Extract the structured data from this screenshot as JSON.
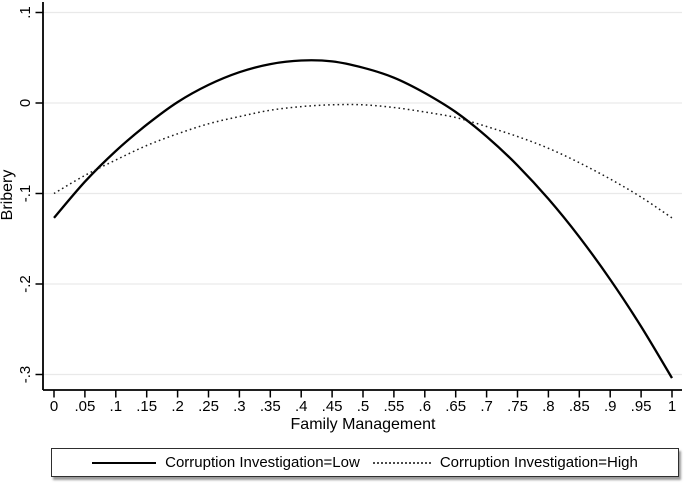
{
  "chart_data": {
    "type": "line",
    "title": "",
    "xlabel": "Family Management",
    "ylabel": "Bribery",
    "xlim": [
      0,
      1
    ],
    "ylim": [
      -0.32,
      0.1
    ],
    "grid": "horizontal-only",
    "grid_color": "#e9e9e9",
    "legend_position": "bottom-boxed",
    "x_ticks": [
      "0",
      ".05",
      ".1",
      ".15",
      ".2",
      ".25",
      ".3",
      ".35",
      ".4",
      ".45",
      ".5",
      ".55",
      ".6",
      ".65",
      ".7",
      ".75",
      ".8",
      ".85",
      ".9",
      ".95",
      "1"
    ],
    "y_ticks": [
      ".1",
      "0",
      "-.1",
      "-.2",
      "-.3"
    ],
    "x": [
      0,
      0.05,
      0.1,
      0.15,
      0.2,
      0.25,
      0.3,
      0.35,
      0.4,
      0.45,
      0.5,
      0.55,
      0.6,
      0.65,
      0.7,
      0.75,
      0.8,
      0.85,
      0.9,
      0.95,
      1
    ],
    "series": [
      {
        "name": "Corruption Investigation=Low",
        "style": "solid",
        "color": "#000000",
        "values": [
          -0.127,
          -0.087,
          -0.053,
          -0.024,
          0.001,
          0.02,
          0.034,
          0.043,
          0.047,
          0.046,
          0.039,
          0.028,
          0.011,
          -0.01,
          -0.037,
          -0.069,
          -0.106,
          -0.148,
          -0.195,
          -0.247,
          -0.304
        ]
      },
      {
        "name": "Corruption Investigation=High",
        "style": "dotted",
        "color": "#1a1a1a",
        "values": [
          -0.1,
          -0.08,
          -0.063,
          -0.047,
          -0.034,
          -0.023,
          -0.015,
          -0.008,
          -0.004,
          -0.002,
          -0.002,
          -0.005,
          -0.01,
          -0.016,
          -0.026,
          -0.037,
          -0.05,
          -0.066,
          -0.084,
          -0.104,
          -0.127
        ]
      }
    ]
  }
}
